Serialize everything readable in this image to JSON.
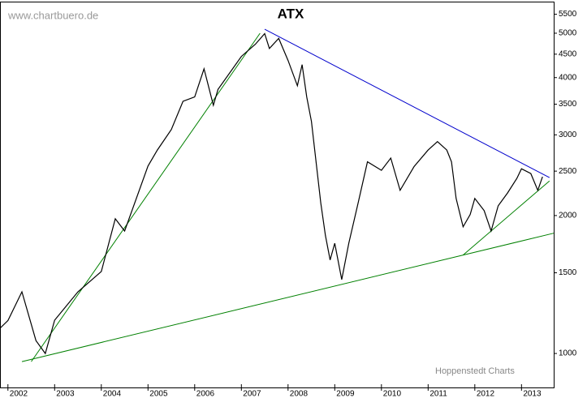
{
  "chart_data": {
    "type": "line",
    "title": "ATX",
    "watermark": "www.chartbuero.de",
    "source": "Hoppenstedt Charts",
    "log_scale": true,
    "xlim": [
      2001.83,
      2013.69
    ],
    "xticks": [
      2002,
      2003,
      2004,
      2005,
      2006,
      2007,
      2008,
      2009,
      2010,
      2011,
      2012,
      2013
    ],
    "ylim": [
      843,
      5860
    ],
    "yticks": [
      1000,
      1500,
      2000,
      2500,
      3000,
      3500,
      4000,
      4500,
      5000,
      5500
    ],
    "series": [
      {
        "name": "ATX",
        "color": "#000000",
        "x": [
          2001.83,
          2002.0,
          2002.3,
          2002.6,
          2002.8,
          2003.0,
          2003.5,
          2004.0,
          2004.3,
          2004.5,
          2005.0,
          2005.2,
          2005.5,
          2005.75,
          2006.0,
          2006.2,
          2006.4,
          2006.5,
          2007.0,
          2007.3,
          2007.5,
          2007.6,
          2007.8,
          2008.0,
          2008.2,
          2008.3,
          2008.4,
          2008.5,
          2008.7,
          2008.8,
          2008.9,
          2009.0,
          2009.15,
          2009.3,
          2009.5,
          2009.7,
          2010.0,
          2010.2,
          2010.4,
          2010.7,
          2011.0,
          2011.2,
          2011.4,
          2011.5,
          2011.6,
          2011.75,
          2011.9,
          2012.0,
          2012.2,
          2012.35,
          2012.5,
          2012.7,
          2012.9,
          2013.0,
          2013.2,
          2013.35,
          2013.45
        ],
        "values": [
          1135,
          1180,
          1363,
          1067,
          1000,
          1182,
          1363,
          1510,
          1968,
          1850,
          2565,
          2780,
          3080,
          3550,
          3630,
          4180,
          3480,
          3770,
          4450,
          4730,
          4990,
          4630,
          4870,
          4360,
          3840,
          4270,
          3630,
          3210,
          2130,
          1810,
          1600,
          1740,
          1450,
          1740,
          2130,
          2620,
          2510,
          2670,
          2270,
          2560,
          2780,
          2900,
          2780,
          2620,
          2180,
          1890,
          2010,
          2180,
          2050,
          1850,
          2100,
          2240,
          2410,
          2530,
          2470,
          2270,
          2430
        ]
      }
    ],
    "trendlines": [
      {
        "color": "#0000cc",
        "x": [
          2007.5,
          2013.6
        ],
        "values": [
          5100,
          2420
        ]
      },
      {
        "color": "#008000",
        "x": [
          2002.5,
          2007.4
        ],
        "values": [
          960,
          5000
        ]
      },
      {
        "color": "#008000",
        "x": [
          2002.3,
          2013.69
        ],
        "values": [
          960,
          1830
        ]
      },
      {
        "color": "#008000",
        "x": [
          2011.75,
          2013.6
        ],
        "values": [
          1640,
          2380
        ]
      }
    ]
  }
}
